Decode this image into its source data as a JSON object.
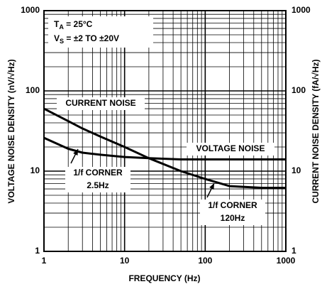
{
  "chart_data": {
    "type": "line",
    "xlabel": "FREQUENCY (Hz)",
    "ylabel": "VOLTAGE NOISE DENSITY (nV/√Hz)",
    "y2label": "CURRENT NOISE DENSITY (fA/√Hz)",
    "log_x": true,
    "log_y": true,
    "grid": true,
    "xlim": [
      1,
      1000
    ],
    "ylim": [
      1,
      1000
    ],
    "y2lim": [
      1,
      1000
    ],
    "xticks": [
      1,
      10,
      100,
      1000
    ],
    "yticks": [
      1,
      10,
      100,
      1000
    ],
    "y2ticks": [
      1,
      10,
      100,
      1000
    ],
    "xminor": [
      2,
      3,
      4,
      5,
      6,
      7,
      8,
      9,
      20,
      30,
      40,
      50,
      60,
      70,
      80,
      90,
      200,
      300,
      400,
      500,
      600,
      700,
      800,
      900
    ],
    "yminor": [
      2,
      3,
      4,
      5,
      6,
      7,
      8,
      9,
      20,
      30,
      40,
      50,
      60,
      70,
      80,
      90,
      200,
      300,
      400,
      500,
      600,
      700,
      800,
      900
    ],
    "conditions": [
      {
        "symbol": "T",
        "sub": "A",
        "text": " = 25°C"
      },
      {
        "symbol": "V",
        "sub": "S",
        "text": " = ±2 TO ±20V"
      }
    ],
    "x": [
      1,
      2,
      3,
      5,
      10,
      20,
      50,
      100,
      200,
      500,
      1000
    ],
    "series": [
      {
        "name": "VOLTAGE NOISE",
        "color": "#000000",
        "values": [
          26,
          19,
          17,
          16,
          15,
          14.5,
          14,
          14,
          14,
          14,
          14
        ]
      },
      {
        "name": "CURRENT NOISE",
        "color": "#000000",
        "axis": "y2",
        "values": [
          60,
          42,
          34,
          27,
          20,
          14.5,
          10,
          8,
          6.5,
          6.2,
          6.2
        ]
      }
    ],
    "annotations": [
      {
        "lines": [
          "1/f CORNER",
          "2.5Hz"
        ]
      },
      {
        "lines": [
          "1/f CORNER",
          "120Hz"
        ]
      }
    ]
  }
}
